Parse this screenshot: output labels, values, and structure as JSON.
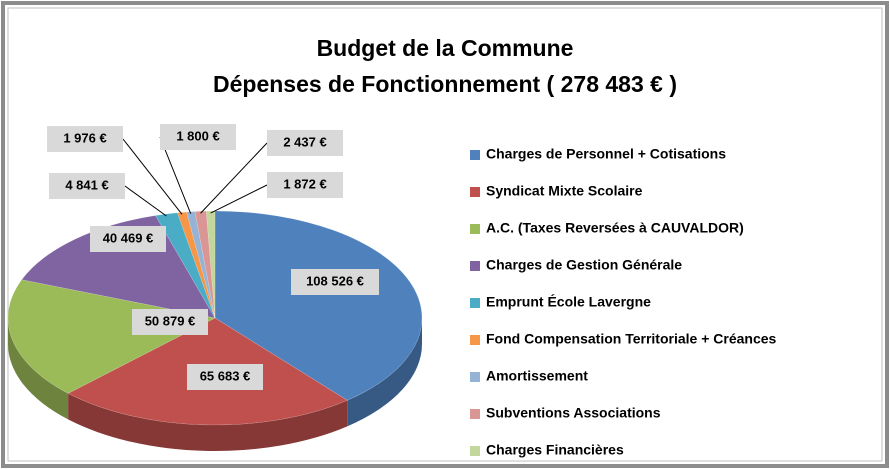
{
  "chart_data": {
    "type": "pie",
    "title": [
      "Budget de la Commune",
      "Dépenses de Fonctionnement ( 278 483 € )"
    ],
    "categories": [
      "Charges de Personnel + Cotisations",
      "Syndicat Mixte Scolaire",
      "A.C. (Taxes Reversées à CAUVALDOR)",
      "Charges de Gestion Générale",
      "Emprunt École Lavergne",
      "Fond Compensation Territoriale + Créances",
      "Amortissement",
      "Subventions Associations",
      "Charges Financières"
    ],
    "values": [
      108526,
      65683,
      50879,
      40469,
      4841,
      1976,
      1800,
      2437,
      1872
    ],
    "value_labels": [
      "108 526 €",
      "65 683 €",
      "50 879 €",
      "40 469 €",
      "4 841 €",
      "1 976 €",
      "1 800 €",
      "2 437 €",
      "1 872 €"
    ],
    "colors": [
      "#4f81bd",
      "#c0504d",
      "#9bbb59",
      "#8064a2",
      "#4bacc6",
      "#f79646",
      "#95b3d7",
      "#d99694",
      "#c3d69b"
    ],
    "legend": "right"
  }
}
